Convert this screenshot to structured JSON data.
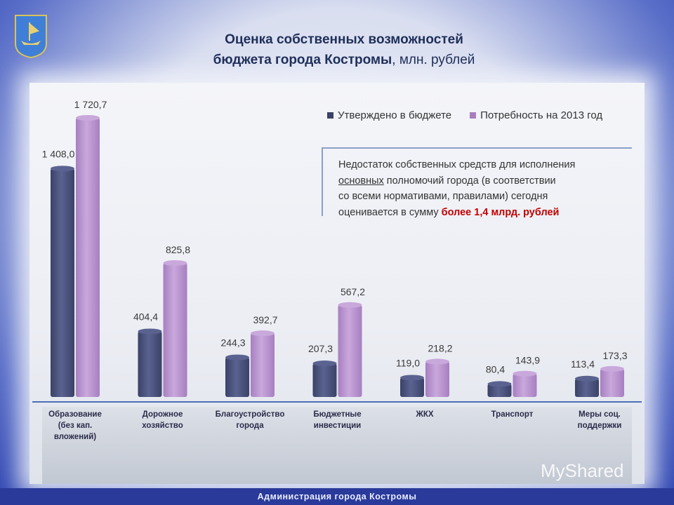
{
  "title_line1": "Оценка собственных возможностей",
  "title_line2_bold": "бюджета города Костромы",
  "title_line2_rest": ", млн. рублей",
  "note": {
    "line1": "Недостаток собственных средств для исполнения",
    "line2_underlined": "основных",
    "line2_rest": " полномочий города (в соответствии",
    "line3": "со всеми нормативами, правилами) сегодня",
    "line4_prefix": "оценивается в сумму ",
    "line4_highlight": "более 1,4 млрд. рублей"
  },
  "footer": "Администрация города Костромы",
  "watermark": "MyShared",
  "colors": {
    "series1": "#3a4268",
    "series2": "#a77fc0",
    "accent_red": "#c00000"
  },
  "chart_data": {
    "type": "bar",
    "categories": [
      [
        "Образование",
        "(без кап.",
        "вложений)"
      ],
      [
        "Дорожное",
        "хозяйство"
      ],
      [
        "Благоустройство",
        "города"
      ],
      [
        "Бюджетные",
        "инвестиции"
      ],
      [
        "ЖКХ"
      ],
      [
        "Транспорт"
      ],
      [
        "Меры соц.",
        "поддержки"
      ]
    ],
    "series": [
      {
        "name": "Утверждено в бюджете",
        "values": [
          1408.0,
          404.4,
          244.3,
          207.3,
          119.0,
          80.4,
          113.4
        ],
        "labels": [
          "1 408,0",
          "404,4",
          "244,3",
          "207,3",
          "119,0",
          "80,4",
          "113,4"
        ]
      },
      {
        "name": "Потребность на 2013 год",
        "values": [
          1720.7,
          825.8,
          392.7,
          567.2,
          218.2,
          143.9,
          173.3
        ],
        "labels": [
          "1 720,7",
          "825,8",
          "392,7",
          "567,2",
          "218,2",
          "143,9",
          "173,3"
        ]
      }
    ],
    "legend_position": "top-right",
    "grid": false
  }
}
